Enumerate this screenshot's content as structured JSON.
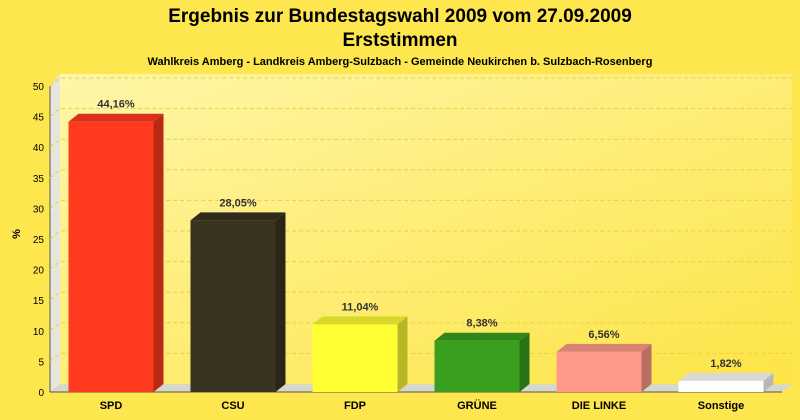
{
  "chart_data": {
    "type": "bar",
    "title": "Ergebnis zur Bundestagswahl 2009 vom 27.09.2009",
    "subtitle": "Erststimmen",
    "caption": "Wahlkreis Amberg - Landkreis Amberg-Sulzbach - Gemeinde Neukirchen b. Sulzbach-Rosenberg",
    "xlabel": "",
    "ylabel": "%",
    "ylim": [
      0,
      50
    ],
    "yticks": [
      0,
      5,
      10,
      15,
      20,
      25,
      30,
      35,
      40,
      45,
      50
    ],
    "grid": true,
    "categories": [
      "SPD",
      "CSU",
      "FDP",
      "GRÜNE",
      "DIE LINKE",
      "Sonstige"
    ],
    "values": [
      44.16,
      28.05,
      11.04,
      8.38,
      6.56,
      1.82
    ],
    "labels": [
      "44,16%",
      "28,05%",
      "11,04%",
      "8,38%",
      "6,56%",
      "1,82%"
    ],
    "colors": [
      "#ff3a1f",
      "#3a3320",
      "#ffff33",
      "#3a9e1e",
      "#ff9a88",
      "#ffffff"
    ]
  }
}
